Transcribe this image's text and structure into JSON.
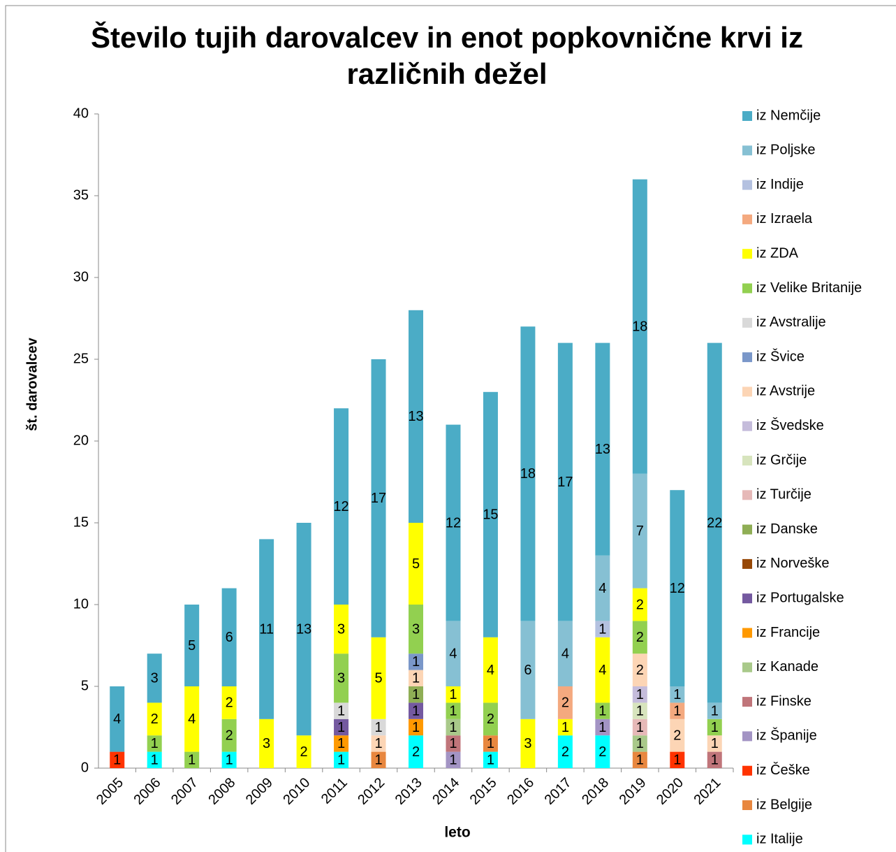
{
  "chart_data": {
    "type": "bar",
    "stacked": true,
    "title": "Število tujih darovalcev in enot popkovnične krvi iz različnih dežel",
    "xlabel": "leto",
    "ylabel": "št. darovalcev",
    "categories": [
      "2005",
      "2006",
      "2007",
      "2008",
      "2009",
      "2010",
      "2011",
      "2012",
      "2013",
      "2014",
      "2015",
      "2016",
      "2017",
      "2018",
      "2019",
      "2020",
      "2021"
    ],
    "ylim": [
      0,
      40
    ],
    "yticks": [
      0,
      5,
      10,
      15,
      20,
      25,
      30,
      35,
      40
    ],
    "grid": false,
    "legend": "right",
    "series": [
      {
        "name": "iz Nemčije",
        "color": "#4bacc6",
        "values": [
          4,
          3,
          5,
          6,
          11,
          13,
          12,
          17,
          13,
          12,
          15,
          18,
          17,
          13,
          18,
          12,
          22
        ]
      },
      {
        "name": "iz Poljske",
        "color": "#86c0d3",
        "values": [
          null,
          null,
          null,
          null,
          null,
          null,
          null,
          null,
          null,
          4,
          null,
          6,
          4,
          4,
          7,
          1,
          1
        ]
      },
      {
        "name": "iz Indije",
        "color": "#b4c1e0",
        "values": [
          null,
          null,
          null,
          null,
          null,
          null,
          null,
          null,
          null,
          null,
          null,
          null,
          null,
          1,
          null,
          null,
          null
        ]
      },
      {
        "name": "iz Izraela",
        "color": "#f4a97f",
        "values": [
          null,
          null,
          null,
          null,
          null,
          null,
          null,
          null,
          null,
          null,
          null,
          null,
          2,
          null,
          null,
          1,
          null
        ]
      },
      {
        "name": "iz ZDA",
        "color": "#ffff00",
        "values": [
          null,
          2,
          4,
          2,
          3,
          2,
          3,
          5,
          5,
          1,
          4,
          3,
          1,
          4,
          2,
          null,
          null
        ]
      },
      {
        "name": "iz Velike Britanije",
        "color": "#92d050",
        "values": [
          null,
          1,
          1,
          2,
          null,
          null,
          3,
          null,
          3,
          1,
          2,
          null,
          null,
          1,
          2,
          null,
          1
        ]
      },
      {
        "name": "iz Avstralije",
        "color": "#d9d9d9",
        "values": [
          null,
          null,
          null,
          null,
          null,
          null,
          1,
          1,
          null,
          null,
          null,
          null,
          null,
          null,
          null,
          null,
          null
        ]
      },
      {
        "name": "iz Švice",
        "color": "#7a97c9",
        "values": [
          null,
          null,
          null,
          null,
          null,
          null,
          null,
          null,
          1,
          null,
          null,
          null,
          null,
          null,
          null,
          null,
          null
        ]
      },
      {
        "name": "iz Avstrije",
        "color": "#fcd5b5",
        "values": [
          null,
          null,
          null,
          null,
          null,
          null,
          null,
          1,
          1,
          null,
          null,
          null,
          null,
          null,
          2,
          2,
          1
        ]
      },
      {
        "name": "iz Švedske",
        "color": "#c5bcdb",
        "values": [
          null,
          null,
          null,
          null,
          null,
          null,
          null,
          null,
          null,
          null,
          null,
          null,
          null,
          null,
          1,
          null,
          null
        ]
      },
      {
        "name": "iz Grčije",
        "color": "#d7e4bd",
        "values": [
          null,
          null,
          null,
          null,
          null,
          null,
          null,
          null,
          null,
          null,
          null,
          null,
          null,
          null,
          1,
          null,
          null
        ]
      },
      {
        "name": "iz Turčije",
        "color": "#e6b9b8",
        "values": [
          null,
          null,
          null,
          null,
          null,
          null,
          null,
          null,
          null,
          null,
          null,
          null,
          null,
          null,
          1,
          null,
          null
        ]
      },
      {
        "name": "iz Danske",
        "color": "#8fae55",
        "values": [
          null,
          null,
          null,
          null,
          null,
          null,
          null,
          null,
          1,
          null,
          null,
          null,
          null,
          null,
          null,
          null,
          null
        ]
      },
      {
        "name": "iz Norveške",
        "color": "#974806",
        "values": [
          null,
          null,
          null,
          null,
          null,
          null,
          null,
          null,
          null,
          null,
          null,
          null,
          null,
          null,
          null,
          null,
          null
        ]
      },
      {
        "name": "iz Portugalske",
        "color": "#7459a0",
        "values": [
          null,
          null,
          null,
          null,
          null,
          null,
          1,
          null,
          1,
          null,
          null,
          null,
          null,
          null,
          null,
          null,
          null
        ]
      },
      {
        "name": "iz Francije",
        "color": "#ff9900",
        "values": [
          null,
          null,
          null,
          null,
          null,
          null,
          1,
          null,
          1,
          null,
          null,
          null,
          null,
          null,
          null,
          null,
          null
        ]
      },
      {
        "name": "iz Kanade",
        "color": "#a9c98a",
        "values": [
          null,
          null,
          null,
          null,
          null,
          null,
          null,
          null,
          null,
          1,
          null,
          null,
          null,
          null,
          1,
          null,
          null
        ]
      },
      {
        "name": "iz Finske",
        "color": "#c0757a",
        "values": [
          null,
          null,
          null,
          null,
          null,
          null,
          null,
          null,
          null,
          1,
          null,
          null,
          null,
          null,
          null,
          null,
          1
        ]
      },
      {
        "name": "iz Španije",
        "color": "#a394c4",
        "values": [
          null,
          null,
          null,
          null,
          null,
          null,
          null,
          null,
          null,
          1,
          null,
          null,
          null,
          1,
          null,
          null,
          null
        ]
      },
      {
        "name": "iz Češke",
        "color": "#ff3300",
        "values": [
          1,
          null,
          null,
          null,
          null,
          null,
          null,
          null,
          null,
          null,
          null,
          null,
          null,
          null,
          null,
          1,
          null
        ]
      },
      {
        "name": "iz Belgije",
        "color": "#e8873f",
        "values": [
          null,
          null,
          null,
          null,
          null,
          null,
          null,
          1,
          null,
          null,
          1,
          null,
          null,
          null,
          1,
          null,
          null
        ]
      },
      {
        "name": "iz Italije",
        "color": "#00ffff",
        "values": [
          null,
          1,
          null,
          1,
          null,
          null,
          1,
          null,
          2,
          null,
          1,
          null,
          2,
          2,
          null,
          null,
          null
        ]
      }
    ]
  }
}
